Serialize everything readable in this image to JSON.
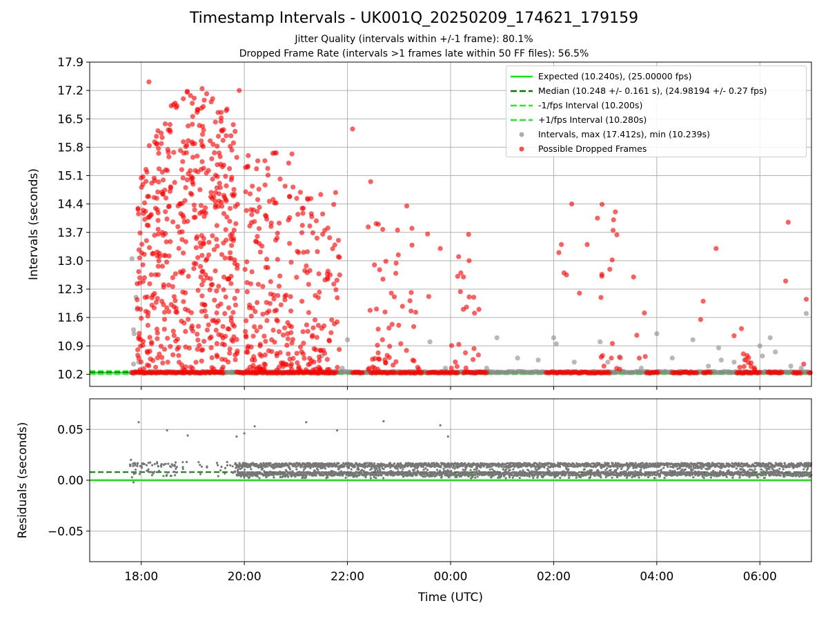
{
  "title": "Timestamp Intervals - UK001Q_20250209_174621_179159",
  "subtitle1": "Jitter Quality (intervals within +/-1 frame): 80.1%",
  "subtitle2": "Dropped Frame Rate (intervals >1 frames late within 50 FF files): 56.5%",
  "colors": {
    "expected": "#00ee00",
    "median": "#007a00",
    "fps_interval": "#22ee22",
    "intervals": "#8c8c8c",
    "dropped": "#ff0000",
    "residuals": "#777777"
  },
  "chart_data": [
    {
      "type": "scatter",
      "ylabel": "Intervals (seconds)",
      "ylim": [
        9.9,
        17.9
      ],
      "yticks": [
        "10.2",
        "10.9",
        "11.6",
        "12.3",
        "13.0",
        "13.7",
        "14.4",
        "15.1",
        "15.8",
        "16.5",
        "17.2",
        "17.9"
      ],
      "xlim_hours": [
        17.0,
        31.0
      ],
      "xtick_labels": [
        "18:00",
        "20:00",
        "22:00",
        "00:00",
        "02:00",
        "04:00",
        "06:00"
      ],
      "grid": true,
      "legend_position": "top-right",
      "legend": [
        "Expected (10.240s), (25.00000 fps)",
        "Median (10.248 +/- 0.161 s), (24.98194 +/- 0.27 fps)",
        "-1/fps Interval (10.200s)",
        "+1/fps Interval (10.280s)",
        "Intervals, max (17.412s), min (10.239s)",
        "Possible Dropped Frames"
      ],
      "lines": {
        "expected": 10.24,
        "median": 10.248,
        "minus_fps": 10.2,
        "plus_fps": 10.28
      },
      "intervals_max": 17.412,
      "intervals_min": 10.239,
      "baseline_segments_hours": [
        [
          17.82,
          19.6
        ],
        [
          19.85,
          21.8
        ],
        [
          22.1,
          22.3
        ],
        [
          22.45,
          22.95
        ],
        [
          23.0,
          23.45
        ],
        [
          23.55,
          24.15
        ],
        [
          24.25,
          24.7
        ],
        [
          25.85,
          27.1
        ],
        [
          27.8,
          28.05
        ],
        [
          28.3,
          28.8
        ],
        [
          28.9,
          29.05
        ],
        [
          29.55,
          30.0
        ],
        [
          30.15,
          30.45
        ],
        [
          30.65,
          30.8
        ],
        [
          30.95,
          31.0
        ]
      ]
    },
    {
      "type": "scatter",
      "xlabel": "Time (UTC)",
      "ylabel": "Residuals (seconds)",
      "ylim": [
        -0.08,
        0.08
      ],
      "yticks": [
        "0.05",
        "0.00",
        "−0.05"
      ],
      "xlim_hours": [
        17.0,
        31.0
      ],
      "xtick_labels": [
        "18:00",
        "20:00",
        "22:00",
        "00:00",
        "02:00",
        "04:00",
        "06:00"
      ],
      "grid": true,
      "lines": {
        "zero": 0.0,
        "median": 0.008
      },
      "band_upper": 0.016,
      "outliers": [
        [
          17.95,
          0.057
        ],
        [
          18.5,
          0.049
        ],
        [
          18.9,
          0.044
        ],
        [
          19.85,
          0.043
        ],
        [
          20.0,
          0.046
        ],
        [
          20.2,
          0.053
        ],
        [
          21.2,
          0.057
        ],
        [
          21.8,
          0.049
        ],
        [
          22.7,
          0.058
        ],
        [
          23.8,
          0.054
        ],
        [
          23.95,
          0.043
        ]
      ]
    }
  ]
}
